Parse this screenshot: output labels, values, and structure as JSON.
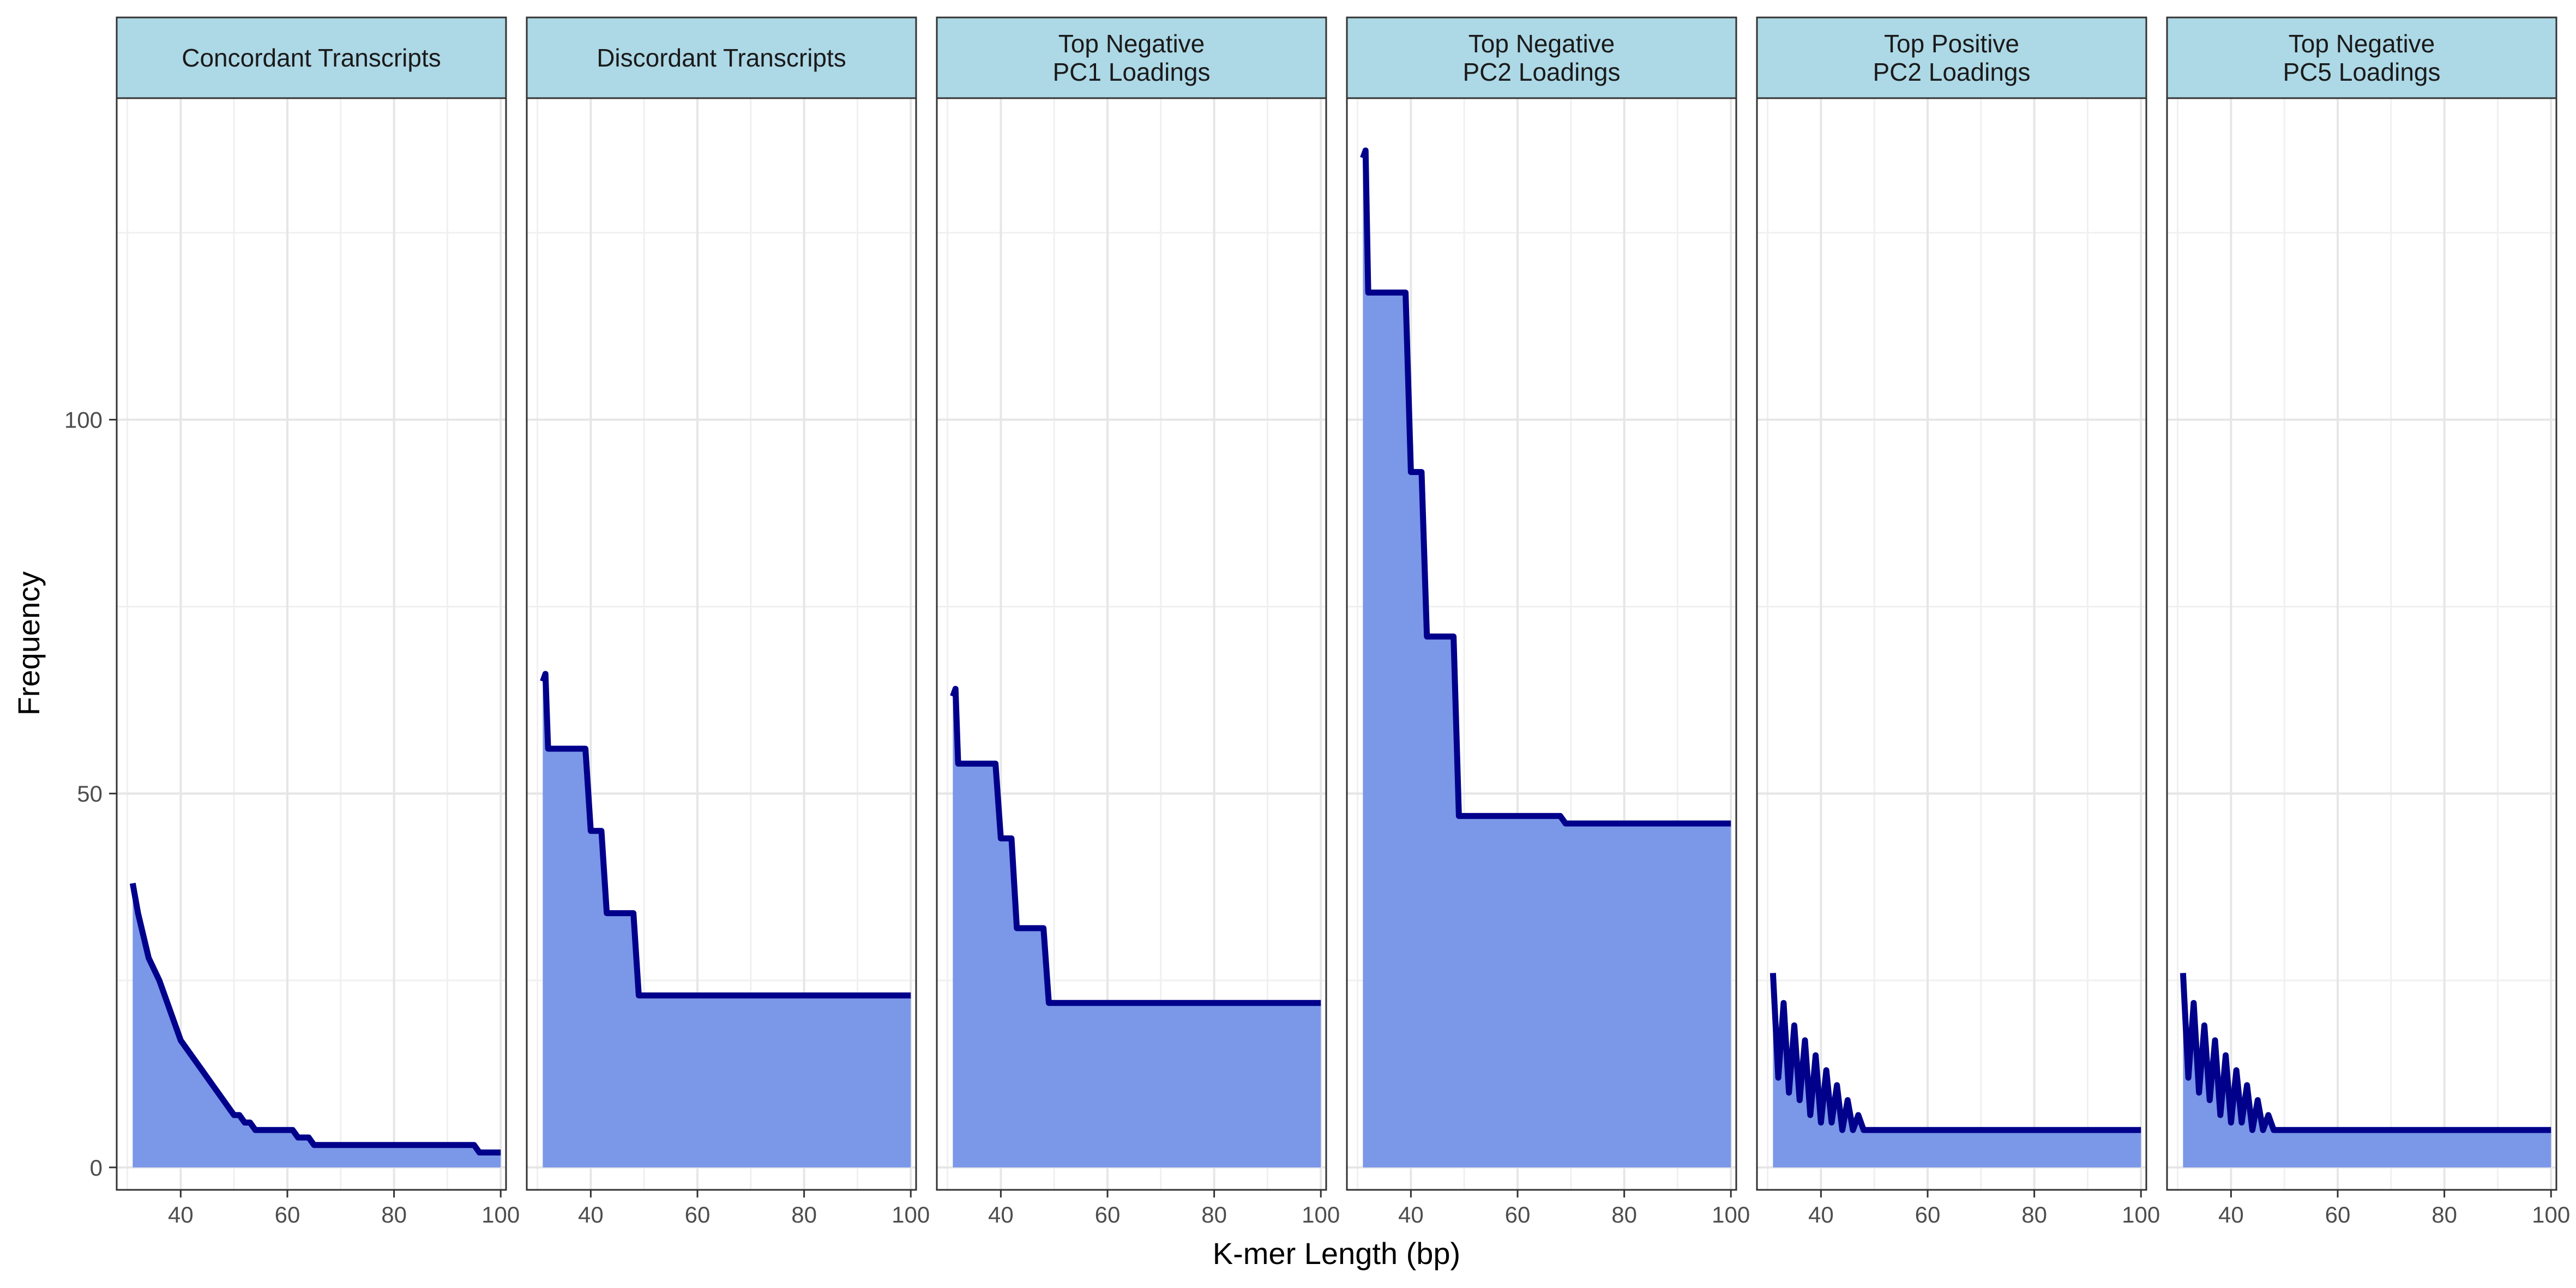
{
  "chart_data": {
    "type": "area",
    "xlabel": "K-mer Length (bp)",
    "ylabel": "Frequency",
    "xlim": [
      28,
      101
    ],
    "ylim": [
      -3,
      143
    ],
    "x_ticks": [
      "40",
      "60",
      "80",
      "100"
    ],
    "y_ticks": [
      "0",
      "50",
      "100"
    ],
    "grid": true,
    "colors": {
      "fill": "#7b97e8",
      "line": "#00008b",
      "strip": "#add8e6"
    },
    "facets": [
      {
        "label": "Concordant Transcripts",
        "points": [
          [
            31,
            38
          ],
          [
            31.5,
            36
          ],
          [
            32,
            34
          ],
          [
            33,
            31
          ],
          [
            34,
            28
          ],
          [
            36,
            25
          ],
          [
            38,
            21
          ],
          [
            40,
            17
          ],
          [
            42,
            15
          ],
          [
            44,
            13
          ],
          [
            46,
            11
          ],
          [
            48,
            9
          ],
          [
            50,
            7
          ],
          [
            51,
            7
          ],
          [
            52,
            6
          ],
          [
            53,
            6
          ],
          [
            54,
            5
          ],
          [
            56,
            5
          ],
          [
            58,
            5
          ],
          [
            60,
            5
          ],
          [
            61,
            5
          ],
          [
            62,
            4
          ],
          [
            64,
            4
          ],
          [
            65,
            3
          ],
          [
            70,
            3
          ],
          [
            80,
            3
          ],
          [
            90,
            3
          ],
          [
            95,
            3
          ],
          [
            96,
            2
          ],
          [
            100,
            2
          ]
        ]
      },
      {
        "label": "Discordant Transcripts",
        "points": [
          [
            31,
            65
          ],
          [
            31.5,
            66
          ],
          [
            32,
            56
          ],
          [
            39,
            56
          ],
          [
            40,
            45
          ],
          [
            42,
            45
          ],
          [
            43,
            34
          ],
          [
            48,
            34
          ],
          [
            49,
            23
          ],
          [
            60,
            23
          ],
          [
            80,
            23
          ],
          [
            100,
            23
          ]
        ]
      },
      {
        "label": "Top Negative\nPC1 Loadings",
        "points": [
          [
            31,
            63
          ],
          [
            31.5,
            64
          ],
          [
            32,
            54
          ],
          [
            39,
            54
          ],
          [
            40,
            44
          ],
          [
            42,
            44
          ],
          [
            43,
            32
          ],
          [
            48,
            32
          ],
          [
            49,
            22
          ],
          [
            60,
            22
          ],
          [
            80,
            22
          ],
          [
            100,
            22
          ]
        ]
      },
      {
        "label": "Top Negative\nPC2 Loadings",
        "points": [
          [
            31,
            135
          ],
          [
            31.5,
            136
          ],
          [
            32,
            117
          ],
          [
            39,
            117
          ],
          [
            40,
            93
          ],
          [
            42,
            93
          ],
          [
            43,
            71
          ],
          [
            48,
            71
          ],
          [
            49,
            47
          ],
          [
            60,
            47
          ],
          [
            68,
            47
          ],
          [
            69,
            46
          ],
          [
            80,
            46
          ],
          [
            100,
            46
          ]
        ]
      },
      {
        "label": "Top Positive\nPC2 Loadings",
        "points": [
          [
            31,
            26
          ],
          [
            32,
            12
          ],
          [
            33,
            22
          ],
          [
            34,
            10
          ],
          [
            35,
            19
          ],
          [
            36,
            9
          ],
          [
            37,
            17
          ],
          [
            38,
            7
          ],
          [
            39,
            15
          ],
          [
            40,
            6
          ],
          [
            41,
            13
          ],
          [
            42,
            6
          ],
          [
            43,
            11
          ],
          [
            44,
            5
          ],
          [
            45,
            9
          ],
          [
            46,
            5
          ],
          [
            47,
            7
          ],
          [
            48,
            5
          ],
          [
            60,
            5
          ],
          [
            80,
            5
          ],
          [
            100,
            5
          ]
        ]
      },
      {
        "label": "Top Negative\nPC5 Loadings",
        "points": [
          [
            31,
            26
          ],
          [
            32,
            12
          ],
          [
            33,
            22
          ],
          [
            34,
            10
          ],
          [
            35,
            19
          ],
          [
            36,
            9
          ],
          [
            37,
            17
          ],
          [
            38,
            7
          ],
          [
            39,
            15
          ],
          [
            40,
            6
          ],
          [
            41,
            13
          ],
          [
            42,
            6
          ],
          [
            43,
            11
          ],
          [
            44,
            5
          ],
          [
            45,
            9
          ],
          [
            46,
            5
          ],
          [
            47,
            7
          ],
          [
            48,
            5
          ],
          [
            60,
            5
          ],
          [
            80,
            5
          ],
          [
            100,
            5
          ]
        ]
      }
    ]
  }
}
